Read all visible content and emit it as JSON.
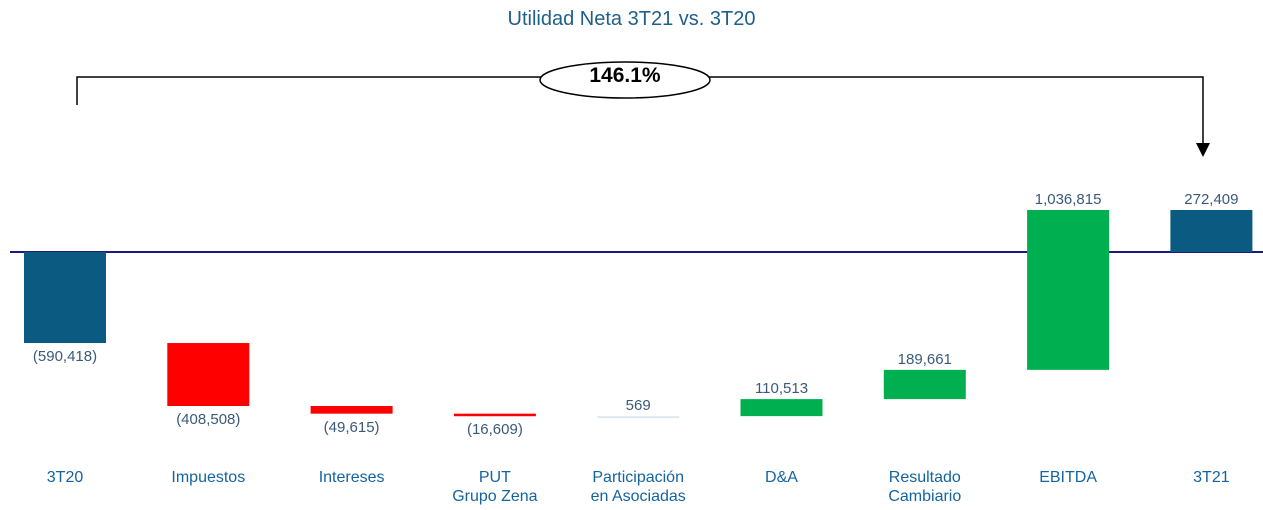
{
  "chart_data": {
    "type": "waterfall",
    "title": "Utilidad Neta 3T21 vs. 3T20",
    "annotation": "146.1%",
    "categories": [
      "3T20",
      "Impuestos",
      "Intereses",
      "PUT\nGrupo Zena",
      "Participación\nen Asociadas",
      "D&A",
      "Resultado\nCambiario",
      "EBITDA",
      "3T21"
    ],
    "values": [
      -590418,
      -408508,
      -49615,
      -16609,
      569,
      110513,
      189661,
      1036815,
      272409
    ],
    "value_labels": [
      "(590,418)",
      "(408,508)",
      "(49,615)",
      "(16,609)",
      "569",
      "110,513",
      "189,661",
      "1,036,815",
      "272,409"
    ],
    "measure": [
      "absolute",
      "relative",
      "relative",
      "relative",
      "relative",
      "relative",
      "relative",
      "relative",
      "total"
    ],
    "colors": [
      "#0b5a82",
      "#ff0000",
      "#ff0000",
      "#ff0000",
      "#dde8ee",
      "#00b050",
      "#00b050",
      "#00b050",
      "#0b5a82"
    ]
  }
}
